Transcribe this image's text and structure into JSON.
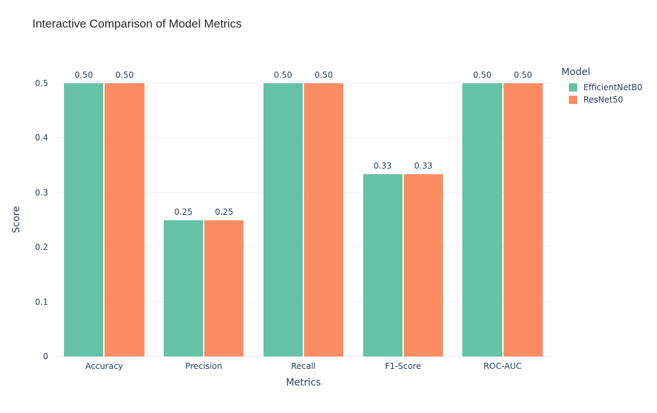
{
  "title": "Interactive Comparison of Model Metrics",
  "colors": {
    "text": "#2a3f5f",
    "title_text": "#262626",
    "grid": "#ebf0f8",
    "zeroline": "#e2e8f2",
    "background": "#ffffff"
  },
  "chart_data": {
    "type": "bar",
    "title": "Interactive Comparison of Model Metrics",
    "xlabel": "Metrics",
    "ylabel": "Score",
    "categories": [
      "Accuracy",
      "Precision",
      "Recall",
      "F1-Score",
      "ROC-AUC"
    ],
    "series": [
      {
        "name": "EfficientNetB0",
        "color": "#66c2a5",
        "values": [
          0.5,
          0.25,
          0.5,
          0.3333,
          0.5
        ],
        "labels": [
          "0.50",
          "0.25",
          "0.50",
          "0.33",
          "0.50"
        ]
      },
      {
        "name": "ResNet50",
        "color": "#fc8d62",
        "values": [
          0.5,
          0.25,
          0.5,
          0.3333,
          0.5
        ],
        "labels": [
          "0.50",
          "0.25",
          "0.50",
          "0.33",
          "0.50"
        ]
      }
    ],
    "ylim": [
      0,
      0.5
    ],
    "yticks": [
      0,
      0.1,
      0.2,
      0.3,
      0.4,
      0.5
    ],
    "ytick_labels": [
      "0",
      "0.1",
      "0.2",
      "0.3",
      "0.4",
      "0.5"
    ],
    "legend_title": "Model",
    "legend_position": "right",
    "grid": true,
    "bar_value_labels": "outside"
  }
}
